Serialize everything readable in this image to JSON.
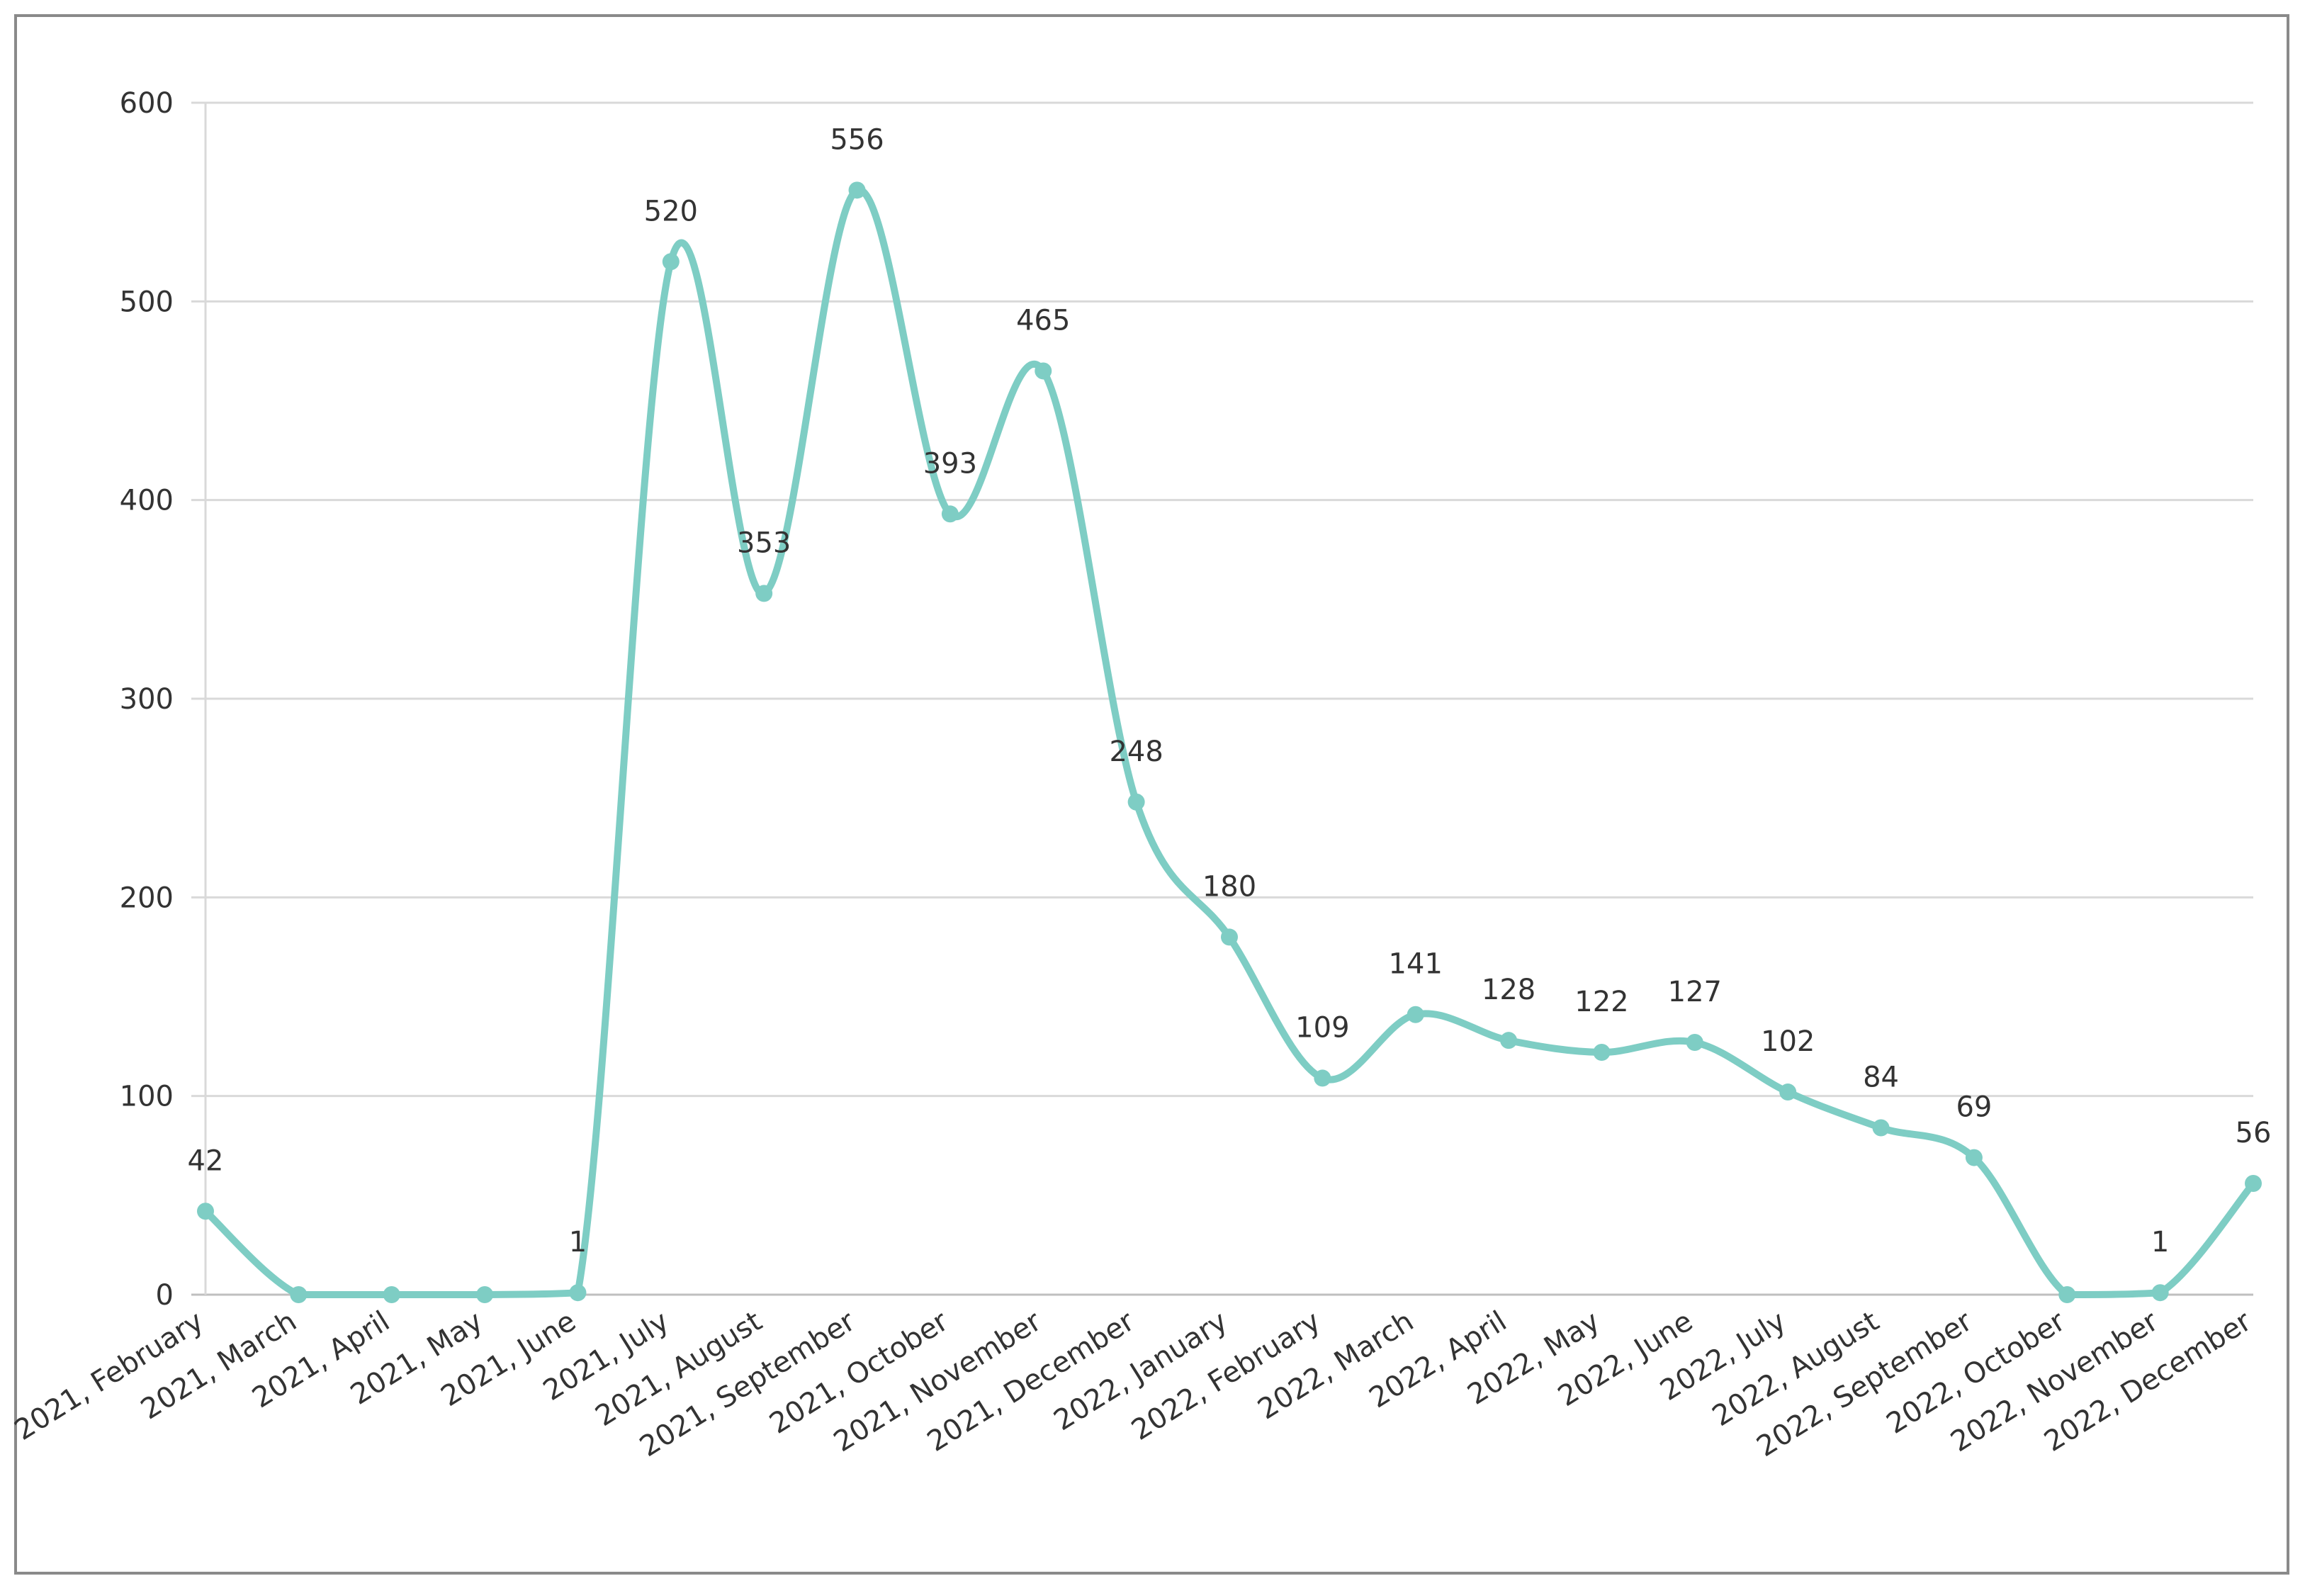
{
  "chart_data": {
    "type": "line",
    "title": "",
    "xlabel": "",
    "ylabel": "",
    "ylim": [
      0,
      600
    ],
    "yticks": [
      0,
      100,
      200,
      300,
      400,
      500,
      600
    ],
    "grid": true,
    "legend": "none",
    "categories": [
      "2021, February",
      "2021, March",
      "2021, April",
      "2021, May",
      "2021, June",
      "2021, July",
      "2021, August",
      "2021, September",
      "2021, October",
      "2021, November",
      "2021, December",
      "2022, January",
      "2022, February",
      "2022, March",
      "2022, April",
      "2022, May",
      "2022, June",
      "2022, July",
      "2022, August",
      "2022, September",
      "2022, October",
      "2022, November",
      "2022, December"
    ],
    "series": [
      {
        "values": [
          42,
          0,
          0,
          0,
          1,
          520,
          353,
          556,
          393,
          465,
          248,
          180,
          109,
          141,
          128,
          122,
          127,
          102,
          84,
          69,
          0,
          1,
          56
        ],
        "data_labels": [
          "42",
          "",
          "",
          "",
          "1",
          "520",
          "353",
          "556",
          "393",
          "465",
          "248",
          "180",
          "109",
          "141",
          "128",
          "122",
          "127",
          "102",
          "84",
          "69",
          "",
          "1",
          "56"
        ],
        "color": "#7ecdc4"
      }
    ]
  }
}
